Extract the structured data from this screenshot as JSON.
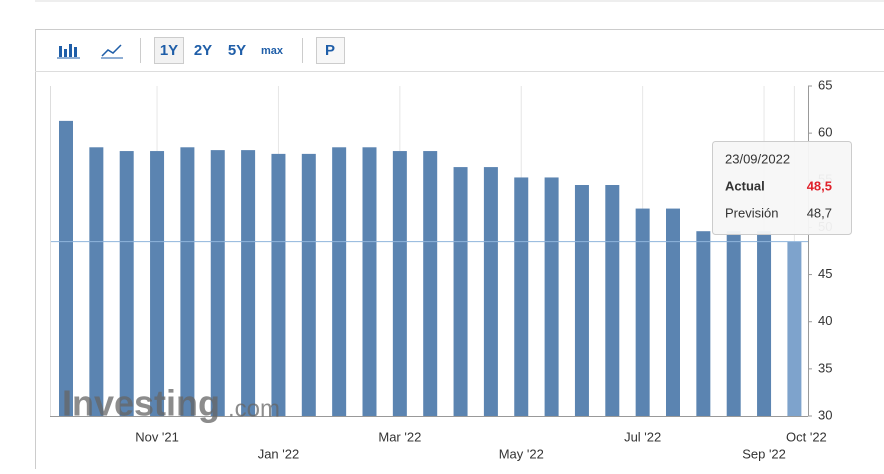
{
  "toolbar": {
    "ranges": [
      "1Y",
      "2Y",
      "5Y",
      "max"
    ],
    "print": "P"
  },
  "watermark": {
    "brand": "Investing",
    "suffix": ".com"
  },
  "tooltip": {
    "date": "23/09/2022",
    "actual_label": "Actual",
    "actual": "48,5",
    "forecast_label": "Previsión",
    "forecast": "48,7"
  },
  "chart_data": {
    "type": "bar",
    "categories": [
      null,
      null,
      null,
      "Nov '21",
      null,
      null,
      null,
      "Jan '22",
      null,
      null,
      null,
      "Mar '22",
      null,
      null,
      null,
      "May '22",
      null,
      null,
      null,
      "Jul '22",
      null,
      null,
      null,
      "Sep '22",
      "Oct '22"
    ],
    "values": [
      61.3,
      58.5,
      58.1,
      58.1,
      58.5,
      58.2,
      58.2,
      57.8,
      57.8,
      58.5,
      58.5,
      58.1,
      58.1,
      56.4,
      56.4,
      55.3,
      55.3,
      54.5,
      54.5,
      52.0,
      52.0,
      49.6,
      49.6,
      49.6,
      48.5
    ],
    "color": "#5b84b1",
    "ylim": [
      30,
      65
    ],
    "yticks": [
      30,
      35,
      40,
      45,
      50,
      55,
      60,
      65
    ],
    "grid": true
  }
}
